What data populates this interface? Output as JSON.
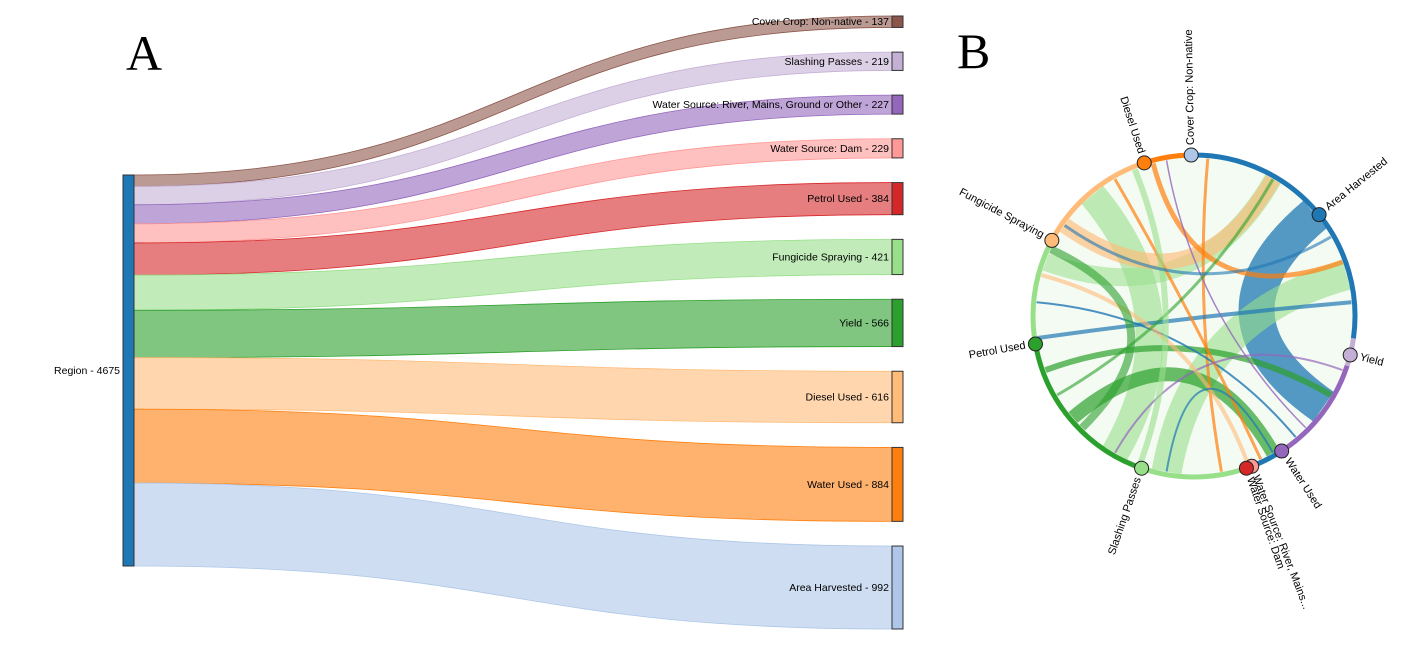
{
  "panel_a": {
    "letter": "A",
    "source": {
      "name": "Region",
      "value": 4675,
      "label": "Region - 4675",
      "color": "#1f77b4"
    },
    "targets": [
      {
        "name": "Cover Crop: Non-native",
        "value": 137,
        "label": "Cover Crop: Non-native - 137",
        "color": "#8c564b"
      },
      {
        "name": "Slashing Passes",
        "value": 219,
        "label": "Slashing Passes - 219",
        "color": "#c5b0d5"
      },
      {
        "name": "Water Source: River, Mains, Ground or Other",
        "value": 227,
        "label": "Water Source: River, Mains, Ground or Other - 227",
        "color": "#9467bd"
      },
      {
        "name": "Water Source: Dam",
        "value": 229,
        "label": "Water Source: Dam - 229",
        "color": "#ff9896"
      },
      {
        "name": "Petrol Used",
        "value": 384,
        "label": "Petrol Used - 384",
        "color": "#d62728"
      },
      {
        "name": "Fungicide Spraying",
        "value": 421,
        "label": "Fungicide Spraying - 421",
        "color": "#98df8a"
      },
      {
        "name": "Yield",
        "value": 566,
        "label": "Yield - 566",
        "color": "#2ca02c"
      },
      {
        "name": "Diesel Used",
        "value": 616,
        "label": "Diesel Used - 616",
        "color": "#ffbb78"
      },
      {
        "name": "Water Used",
        "value": 884,
        "label": "Water Used - 884",
        "color": "#ff7f0e"
      },
      {
        "name": "Area Harvested",
        "value": 992,
        "label": "Area Harvested - 992",
        "color": "#aec7e8"
      }
    ]
  },
  "panel_b": {
    "letter": "B",
    "nodes": [
      {
        "label": "Cover Crop: Non-native",
        "color": "#aec7e8"
      },
      {
        "label": "Area Harvested",
        "color": "#1f77b4"
      },
      {
        "label": "Yield",
        "color": "#c5b0d5"
      },
      {
        "label": "Water Used",
        "color": "#9467bd"
      },
      {
        "label": "Water Source: River, Mains...",
        "color": "#ff9896"
      },
      {
        "label": "Water Source: Dam",
        "color": "#d62728"
      },
      {
        "label": "Slashing Passes",
        "color": "#98df8a"
      },
      {
        "label": "Petrol Used",
        "color": "#2ca02c"
      },
      {
        "label": "Fungicide Spraying",
        "color": "#ffbb78"
      },
      {
        "label": "Diesel Used",
        "color": "#ff7f0e"
      }
    ]
  }
}
